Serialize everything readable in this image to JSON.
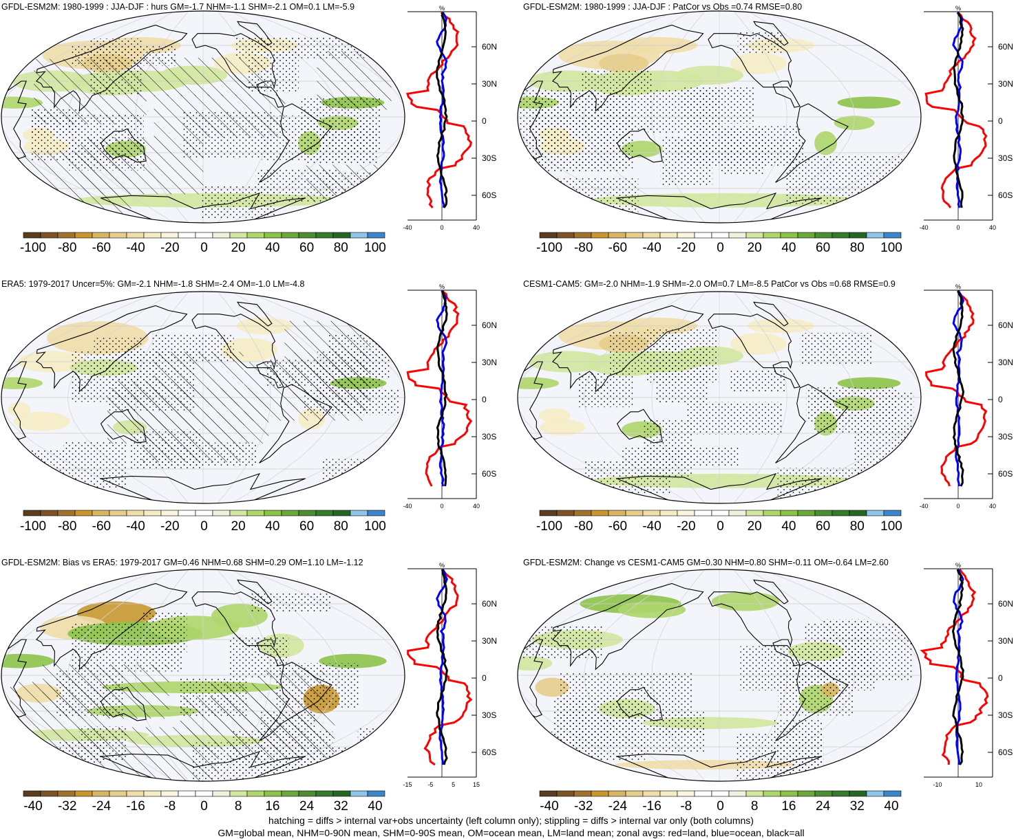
{
  "panels": [
    {
      "id": "p1",
      "title": "GFDL-ESM2M: 1980-1999 : JJA-DJF : hurs GM=-1.7 NHM=-1.1 SHM=-2.1 OM=0.1 LM=-5.9",
      "hatch": true,
      "scale": "rh",
      "map_style": "model"
    },
    {
      "id": "p2",
      "title": "GFDL-ESM2M: 1980-1999 : JJA-DJF : PatCor vs Obs =0.74 RMSE=0.80",
      "hatch": false,
      "scale": "rh",
      "map_style": "model"
    },
    {
      "id": "p3",
      "title": "ERA5: 1979-2017 Uncer=5%: GM=-2.1 NHM=-1.8 SHM=-2.4 OM=-1.0 LM=-4.8",
      "hatch": true,
      "scale": "rh",
      "map_style": "obs"
    },
    {
      "id": "p4",
      "title": "CESM1-CAM5: GM=-2.0 NHM=-1.9 SHM=-2.0 OM=0.7 LM=-8.5 PatCor vs Obs =0.68 RMSE=0.9",
      "hatch": false,
      "scale": "rh",
      "map_style": "model"
    },
    {
      "id": "p5",
      "title": "GFDL-ESM2M: Bias vs ERA5: 1979-2017 GM=0.46 NHM=0.68 SHM=0.29 OM=1.10 LM=-1.12",
      "hatch": true,
      "scale": "diff",
      "map_style": "bias"
    },
    {
      "id": "p6",
      "title": "GFDL-ESM2M: Change vs CESM1-CAM5 GM=0.30 NHM=0.80 SHM=-0.11 OM=-0.64 LM=2.60",
      "hatch": false,
      "scale": "diff",
      "map_style": "change"
    }
  ],
  "colorbars": {
    "rh": {
      "labels": [
        "-100",
        "-80",
        "-60",
        "-40",
        "-20",
        "0",
        "20",
        "40",
        "60",
        "80",
        "100"
      ]
    },
    "diff": {
      "labels": [
        "-40",
        "-32",
        "-24",
        "-16",
        "-8",
        "0",
        "8",
        "16",
        "24",
        "32",
        "40"
      ]
    }
  },
  "palette": [
    "#5a3d1e",
    "#7d5426",
    "#a0722d",
    "#c8982f",
    "#d8b563",
    "#e6cd8c",
    "#efdea8",
    "#f6ecc4",
    "#faf5e0",
    "#ffffff",
    "#ffffff",
    "#eef2df",
    "#d2e79f",
    "#aed66a",
    "#8cc34a",
    "#69a83a",
    "#4d8d33",
    "#357b2b",
    "#246824",
    "#8fc4ea",
    "#3a86c8"
  ],
  "zonal": {
    "lat_ticks": [
      "60N",
      "30N",
      "0",
      "30S",
      "60S"
    ],
    "x_label": "%",
    "rh_x_ticks": [
      "-40",
      "0",
      "40"
    ],
    "p5_x_ticks": [
      "-15",
      "-5",
      "5",
      "15"
    ],
    "p6_x_ticks": [
      "-10",
      "10"
    ],
    "legend_colors": {
      "land": "#ff0000",
      "ocean": "#0000ff",
      "all": "#000000"
    }
  },
  "footer": {
    "line1": "hatching = diffs > internal var+obs uncertainty (left column only); stippling = diffs > internal var only (both columns)",
    "line2": "GM=global mean, NHM=0-90N mean, SHM=0-90S mean, OM=ocean mean, LM=land mean; zonal avgs: red=land, blue=ocean, black=all"
  }
}
